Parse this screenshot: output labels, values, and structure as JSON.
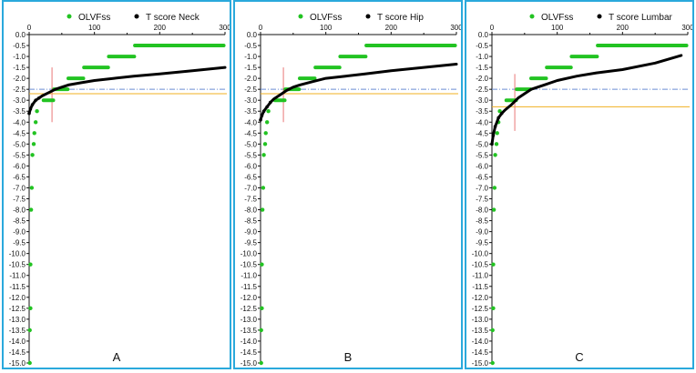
{
  "colors": {
    "frame": "#2aa9dc",
    "olvfss": "#22c322",
    "tscore": "#000000",
    "dashed_ref": "#6c8ed3",
    "orange_line": "#f0b020",
    "red_line": "#e87878"
  },
  "chart_data": [
    {
      "type": "scatter",
      "panel_label": "A",
      "legend": [
        {
          "name": "OLVFss",
          "color": "#22c322"
        },
        {
          "name": "T score Neck",
          "color": "#000000"
        }
      ],
      "legend_position": "top",
      "xlim": [
        0,
        300
      ],
      "x_ticks": [
        0,
        100,
        200,
        300
      ],
      "ylim": [
        -15.0,
        0.0
      ],
      "y_ticks": [
        0.0,
        -0.5,
        -1.0,
        -1.5,
        -2.0,
        -2.5,
        -3.0,
        -3.5,
        -4.0,
        -4.5,
        -5.0,
        -5.5,
        -6.0,
        -6.5,
        -7.0,
        -7.5,
        -8.0,
        -8.5,
        -9.0,
        -9.5,
        -10.0,
        -10.5,
        -11.0,
        -11.5,
        -12.0,
        -12.5,
        -13.0,
        -13.5,
        -14.0,
        -14.5,
        -15.0
      ],
      "grid": false,
      "reference_lines": {
        "dashed_y": -2.5,
        "orange_y": -2.7,
        "red_x": 35,
        "red_y_range": [
          -1.5,
          -4.0
        ]
      },
      "series": [
        {
          "name": "OLVFss",
          "segments": [
            {
              "y": -0.5,
              "x_start": 162,
              "x_end": 298
            },
            {
              "y": -1.0,
              "x_start": 122,
              "x_end": 161
            },
            {
              "y": -1.5,
              "x_start": 84,
              "x_end": 121
            },
            {
              "y": -2.0,
              "x_start": 60,
              "x_end": 83
            },
            {
              "y": -2.5,
              "x_start": 38,
              "x_end": 59
            },
            {
              "y": -3.0,
              "x_start": 22,
              "x_end": 37
            }
          ],
          "points": [
            {
              "x": 12,
              "y": -3.5
            },
            {
              "x": 10,
              "y": -4.0
            },
            {
              "x": 8,
              "y": -4.5
            },
            {
              "x": 7,
              "y": -5.0
            },
            {
              "x": 5,
              "y": -5.5
            },
            {
              "x": 4,
              "y": -7.0
            },
            {
              "x": 3,
              "y": -8.0
            },
            {
              "x": 2,
              "y": -10.5
            },
            {
              "x": 2,
              "y": -12.5
            },
            {
              "x": 1,
              "y": -13.5
            },
            {
              "x": 1,
              "y": -15.0
            }
          ]
        },
        {
          "name": "T score Neck",
          "x": [
            0,
            2,
            5,
            10,
            15,
            20,
            30,
            40,
            50,
            60,
            80,
            100,
            130,
            160,
            200,
            250,
            300
          ],
          "y": [
            -3.6,
            -3.4,
            -3.2,
            -3.0,
            -2.9,
            -2.8,
            -2.65,
            -2.5,
            -2.4,
            -2.3,
            -2.2,
            -2.1,
            -2.0,
            -1.9,
            -1.8,
            -1.65,
            -1.5
          ]
        }
      ]
    },
    {
      "type": "scatter",
      "panel_label": "B",
      "legend": [
        {
          "name": "OLVFss",
          "color": "#22c322"
        },
        {
          "name": "T score Hip",
          "color": "#000000"
        }
      ],
      "legend_position": "top",
      "xlim": [
        0,
        300
      ],
      "x_ticks": [
        0,
        100,
        200,
        300
      ],
      "ylim": [
        -15.0,
        0.0
      ],
      "y_ticks": [
        0.0,
        -0.5,
        -1.0,
        -1.5,
        -2.0,
        -2.5,
        -3.0,
        -3.5,
        -4.0,
        -4.5,
        -5.0,
        -5.5,
        -6.0,
        -6.5,
        -7.0,
        -7.5,
        -8.0,
        -8.5,
        -9.0,
        -9.5,
        -10.0,
        -10.5,
        -11.0,
        -11.5,
        -12.0,
        -12.5,
        -13.0,
        -13.5,
        -14.0,
        -14.5,
        -15.0
      ],
      "grid": false,
      "reference_lines": {
        "dashed_y": -2.5,
        "orange_y": -2.7,
        "red_x": 35,
        "red_y_range": [
          -1.5,
          -4.0
        ]
      },
      "series": [
        {
          "name": "OLVFss",
          "segments": [
            {
              "y": -0.5,
              "x_start": 162,
              "x_end": 298
            },
            {
              "y": -1.0,
              "x_start": 122,
              "x_end": 161
            },
            {
              "y": -1.5,
              "x_start": 84,
              "x_end": 121
            },
            {
              "y": -2.0,
              "x_start": 60,
              "x_end": 83
            },
            {
              "y": -2.5,
              "x_start": 38,
              "x_end": 59
            },
            {
              "y": -3.0,
              "x_start": 22,
              "x_end": 37
            }
          ],
          "points": [
            {
              "x": 12,
              "y": -3.5
            },
            {
              "x": 10,
              "y": -4.0
            },
            {
              "x": 8,
              "y": -4.5
            },
            {
              "x": 7,
              "y": -5.0
            },
            {
              "x": 5,
              "y": -5.5
            },
            {
              "x": 4,
              "y": -7.0
            },
            {
              "x": 3,
              "y": -8.0
            },
            {
              "x": 2,
              "y": -10.5
            },
            {
              "x": 2,
              "y": -12.5
            },
            {
              "x": 1,
              "y": -13.5
            },
            {
              "x": 1,
              "y": -15.0
            }
          ]
        },
        {
          "name": "T score Hip",
          "x": [
            0,
            2,
            5,
            10,
            15,
            20,
            30,
            40,
            50,
            60,
            80,
            100,
            130,
            160,
            200,
            250,
            300
          ],
          "y": [
            -3.9,
            -3.7,
            -3.5,
            -3.3,
            -3.1,
            -2.95,
            -2.75,
            -2.55,
            -2.4,
            -2.3,
            -2.15,
            -2.0,
            -1.9,
            -1.8,
            -1.65,
            -1.5,
            -1.35
          ]
        }
      ]
    },
    {
      "type": "scatter",
      "panel_label": "C",
      "legend": [
        {
          "name": "OLVFss",
          "color": "#22c322"
        },
        {
          "name": "T score Lumbar",
          "color": "#000000"
        }
      ],
      "legend_position": "top",
      "xlim": [
        0,
        300
      ],
      "x_ticks": [
        0,
        100,
        200,
        300
      ],
      "ylim": [
        -15.0,
        0.0
      ],
      "y_ticks": [
        0.0,
        -0.5,
        -1.0,
        -1.5,
        -2.0,
        -2.5,
        -3.0,
        -3.5,
        -4.0,
        -4.5,
        -5.0,
        -5.5,
        -6.0,
        -6.5,
        -7.0,
        -7.5,
        -8.0,
        -8.5,
        -9.0,
        -9.5,
        -10.0,
        -10.5,
        -11.0,
        -11.5,
        -12.0,
        -12.5,
        -13.0,
        -13.5,
        -14.0,
        -14.5,
        -15.0
      ],
      "grid": false,
      "reference_lines": {
        "dashed_y": -2.5,
        "orange_y": -3.3,
        "red_x": 35,
        "red_y_range": [
          -1.8,
          -4.4
        ]
      },
      "series": [
        {
          "name": "OLVFss",
          "segments": [
            {
              "y": -0.5,
              "x_start": 162,
              "x_end": 298
            },
            {
              "y": -1.0,
              "x_start": 122,
              "x_end": 161
            },
            {
              "y": -1.5,
              "x_start": 84,
              "x_end": 121
            },
            {
              "y": -2.0,
              "x_start": 60,
              "x_end": 83
            },
            {
              "y": -2.5,
              "x_start": 38,
              "x_end": 59
            },
            {
              "y": -3.0,
              "x_start": 22,
              "x_end": 37
            }
          ],
          "points": [
            {
              "x": 12,
              "y": -3.5
            },
            {
              "x": 10,
              "y": -4.0
            },
            {
              "x": 8,
              "y": -4.5
            },
            {
              "x": 7,
              "y": -5.0
            },
            {
              "x": 5,
              "y": -5.5
            },
            {
              "x": 4,
              "y": -7.0
            },
            {
              "x": 3,
              "y": -8.0
            },
            {
              "x": 2,
              "y": -10.5
            },
            {
              "x": 2,
              "y": -12.5
            },
            {
              "x": 1,
              "y": -13.5
            },
            {
              "x": 1,
              "y": -15.0
            }
          ]
        },
        {
          "name": "T score Lumbar",
          "x": [
            0,
            2,
            5,
            10,
            15,
            20,
            30,
            40,
            50,
            60,
            80,
            100,
            130,
            160,
            200,
            250,
            290
          ],
          "y": [
            -5.0,
            -4.6,
            -4.2,
            -3.8,
            -3.6,
            -3.45,
            -3.2,
            -2.9,
            -2.7,
            -2.5,
            -2.3,
            -2.1,
            -1.9,
            -1.75,
            -1.6,
            -1.3,
            -0.95
          ]
        }
      ]
    }
  ]
}
